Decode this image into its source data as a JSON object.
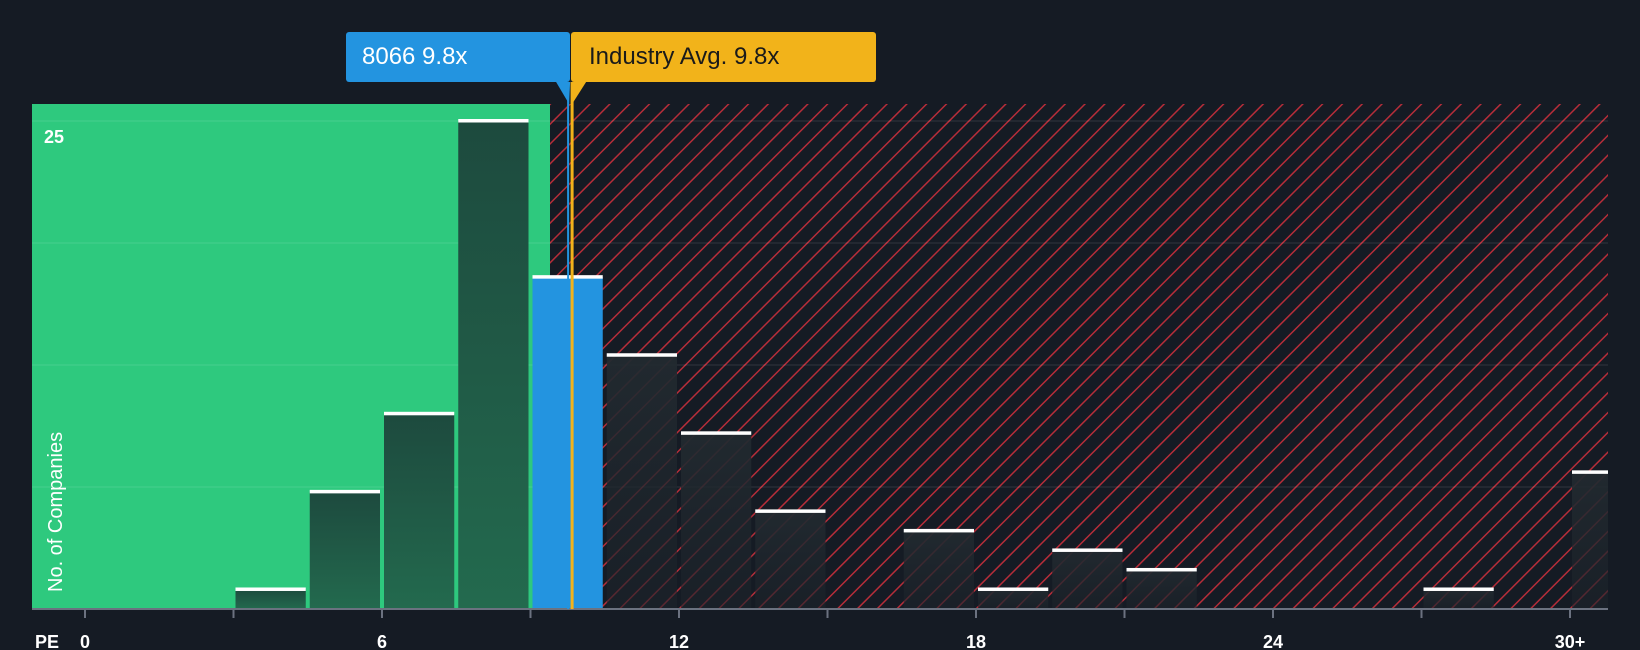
{
  "chart_data": {
    "type": "bar",
    "xlabel": "PE",
    "ylabel": "No. of Companies",
    "y_tick_label": "25",
    "x_tick_labels": [
      "0",
      "6",
      "12",
      "18",
      "24",
      "30+"
    ],
    "x_tick_values": [
      0,
      6,
      12,
      18,
      24,
      30
    ],
    "xlim": [
      0,
      30
    ],
    "ylim": [
      0,
      25
    ],
    "bin_width": 1.5,
    "bins": [
      {
        "start": 3.0,
        "count": 1
      },
      {
        "start": 4.5,
        "count": 6
      },
      {
        "start": 6.0,
        "count": 10
      },
      {
        "start": 7.5,
        "count": 25
      },
      {
        "start": 9.0,
        "count": 17,
        "highlight": true
      },
      {
        "start": 10.5,
        "count": 13
      },
      {
        "start": 12.0,
        "count": 9
      },
      {
        "start": 13.5,
        "count": 5
      },
      {
        "start": 16.5,
        "count": 4
      },
      {
        "start": 18.0,
        "count": 1
      },
      {
        "start": 19.5,
        "count": 3
      },
      {
        "start": 21.0,
        "count": 2
      },
      {
        "start": 27.0,
        "count": 1
      },
      {
        "start": 30.0,
        "count": 7
      }
    ],
    "company": {
      "ticker": "8066",
      "pe": 9.8,
      "label": "8066 9.8x"
    },
    "industry": {
      "pe": 9.8,
      "label": "Industry Avg. 9.8x"
    },
    "colors": {
      "background": "#151b24",
      "fair_zone": "#2ec97e",
      "expensive_zone": "#8b2530",
      "highlight_bar": "#2394e0",
      "company_callout": "#2394e0",
      "industry_callout": "#f2b31a"
    }
  }
}
